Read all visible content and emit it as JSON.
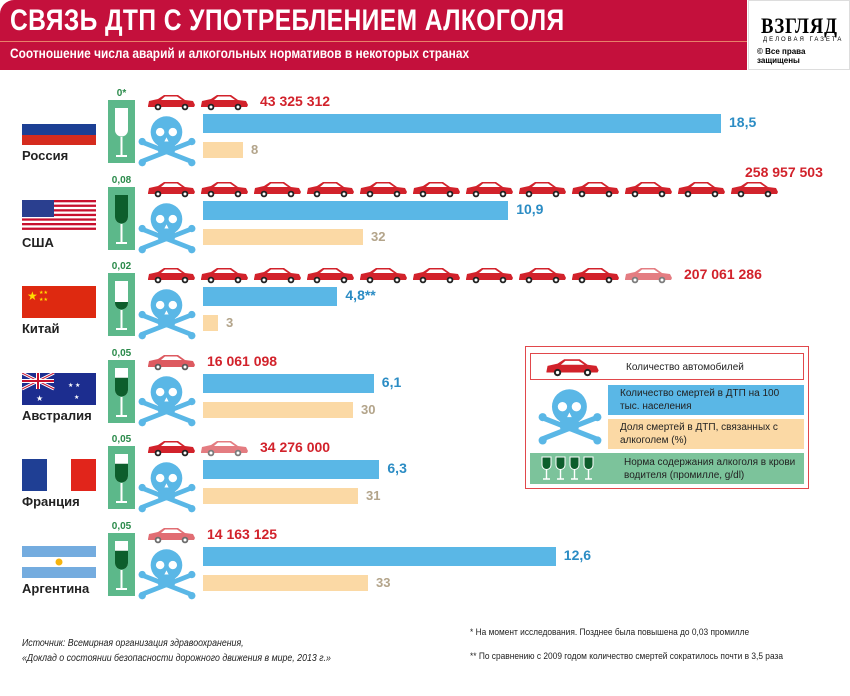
{
  "header": {
    "title": "СВЯЗЬ ДТП С УПОТРЕБЛЕНИЕМ АЛКОГОЛЯ",
    "subtitle": "Соотношение числа аварий и алкогольных нормативов в некоторых странах"
  },
  "logo": {
    "name": "ВЗГЛЯД",
    "tagline": "ДЕЛОВАЯ ГАЗЕТА",
    "copyright": "© Все права защищены"
  },
  "colors": {
    "accent": "#c4103c",
    "deaths": "#5ab7e6",
    "alcohol_share": "#fbd9a5",
    "limit": "#5cb88a",
    "cars": "#d2222b"
  },
  "chart_data": {
    "type": "bar",
    "title": "Связь ДТП с употреблением алкоголя",
    "categories": [
      "Россия",
      "США",
      "Китай",
      "Австралия",
      "Франция",
      "Аргентина"
    ],
    "series": [
      {
        "name": "Количество смертей в ДТП на 100 тыс. населения",
        "values": [
          18.5,
          10.9,
          4.8,
          6.1,
          6.3,
          12.6
        ],
        "labels": [
          "18,5",
          "10,9",
          "4,8**",
          "6,1",
          "6,3",
          "12,6"
        ]
      },
      {
        "name": "Доля смертей в ДТП, связанных с алкоголем (%)",
        "values": [
          8,
          32,
          3,
          30,
          31,
          33
        ],
        "labels": [
          "8",
          "32",
          "3",
          "30",
          "31",
          "33"
        ]
      },
      {
        "name": "Количество автомобилей",
        "values": [
          43325312,
          258957503,
          207061286,
          16061098,
          34276000,
          14163125
        ],
        "labels": [
          "43 325 312",
          "258 957 503",
          "207 061 286",
          "16 061 098",
          "34 276 000",
          "14 163 125"
        ]
      },
      {
        "name": "Норма содержания алкоголя в крови водителя (промилле, g/dl)",
        "values": [
          0,
          0.08,
          0.02,
          0.05,
          0.05,
          0.05
        ],
        "labels": [
          "0*",
          "0,08",
          "0,02",
          "0,05",
          "0,05",
          "0,05"
        ]
      }
    ]
  },
  "legend": {
    "cars": "Количество автомобилей",
    "deaths": "Количество смертей в ДТП на 100 тыс. населения",
    "alcohol": "Доля смертей в ДТП, связанных с алкоголем (%)",
    "limit": "Норма содержания алкоголя в крови водителя (промилле, g/dl)"
  },
  "footer": {
    "source1": "Источник: Всемирная организация здравоохранения,",
    "source2": "«Доклад о состоянии безопасности дорожного движения в мире, 2013 г.»",
    "note1": "*  На момент исследования. Позднее была повышена до 0,03 промилле",
    "note2": "**  По сравнению с 2009 годом количество смертей сократилось почти в 3,5 раза"
  }
}
